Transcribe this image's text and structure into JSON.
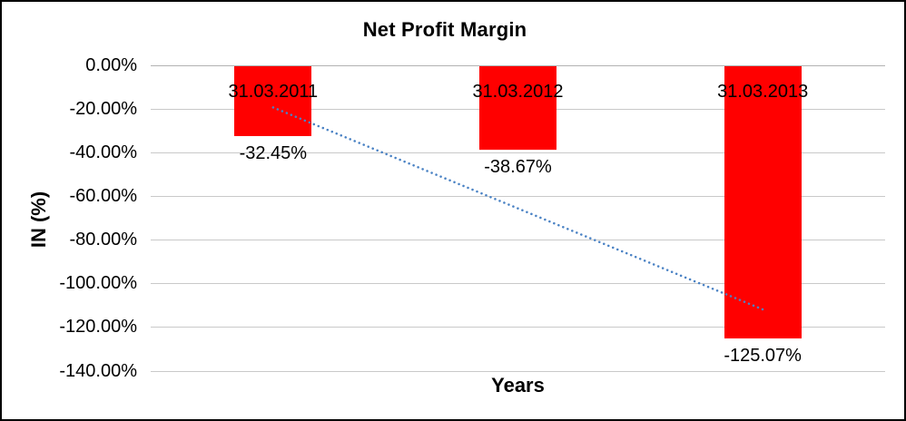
{
  "chart_data": {
    "type": "bar",
    "title": "Net Profit Margin",
    "xlabel": "Years",
    "ylabel": "IN (%)",
    "categories": [
      "31.03.2011",
      "31.03.2012",
      "31.03.2013"
    ],
    "values": [
      -32.45,
      -38.67,
      -125.07
    ],
    "data_labels": [
      "-32.45%",
      "-38.67%",
      "-125.07%"
    ],
    "y_ticks": [
      "0.00%",
      "-20.00%",
      "-40.00%",
      "-60.00%",
      "-80.00%",
      "-100.00%",
      "-120.00%",
      "-140.00%"
    ],
    "y_tick_values": [
      0,
      -20,
      -40,
      -60,
      -80,
      -100,
      -120,
      -140
    ],
    "ylim": [
      -140,
      0
    ],
    "grid": true,
    "legend": "none",
    "bar_color": "#ff0000",
    "gridline_color": "#c9c9c9",
    "zero_line_color": "#b3b3b3",
    "text_color": "#000000",
    "trendline": {
      "style": "dotted",
      "color": "#4a82c4",
      "start_value": -19.09,
      "end_value": -111.71
    }
  }
}
